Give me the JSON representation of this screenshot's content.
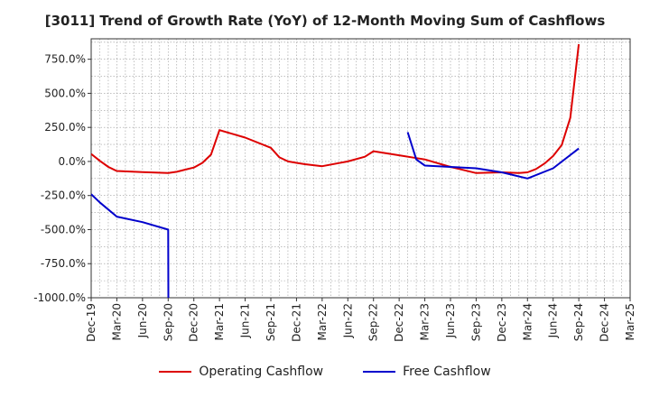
{
  "chart_data": {
    "type": "line",
    "title": "[3011]  Trend of Growth Rate (YoY) of 12-Month Moving Sum of Cashflows",
    "xlabel": "",
    "ylabel": "",
    "ylim": [
      -1000,
      900
    ],
    "y_ticks": [
      750,
      500,
      250,
      0,
      -250,
      -500,
      -750,
      -1000
    ],
    "y_tick_labels": [
      "750.0%",
      "500.0%",
      "250.0%",
      "0.0%",
      "-250.0%",
      "-500.0%",
      "-750.0%",
      "-1000.0%"
    ],
    "x_range": [
      "Dec-19",
      "Mar-25"
    ],
    "x_ticks": [
      "Dec-19",
      "Mar-20",
      "Jun-20",
      "Sep-20",
      "Dec-20",
      "Mar-21",
      "Jun-21",
      "Sep-21",
      "Dec-21",
      "Mar-22",
      "Jun-22",
      "Sep-22",
      "Dec-22",
      "Mar-23",
      "Jun-23",
      "Sep-23",
      "Dec-23",
      "Mar-24",
      "Jun-24",
      "Sep-24",
      "Dec-24",
      "Mar-25"
    ],
    "grid": true,
    "legend_position": "bottom",
    "series": [
      {
        "name": "Operating Cashflow",
        "color": "#dd0000",
        "points": [
          [
            "Dec-19",
            55
          ],
          [
            "Jan-20",
            5
          ],
          [
            "Feb-20",
            -40
          ],
          [
            "Mar-20",
            -70
          ],
          [
            "Jun-20",
            -78
          ],
          [
            "Sep-20",
            -85
          ],
          [
            "Oct-20",
            -76
          ],
          [
            "Nov-20",
            -60
          ],
          [
            "Dec-20",
            -45
          ],
          [
            "Jan-21",
            -10
          ],
          [
            "Feb-21",
            50
          ],
          [
            "Mar-21",
            230
          ],
          [
            "Jun-21",
            175
          ],
          [
            "Sep-21",
            100
          ],
          [
            "Oct-21",
            30
          ],
          [
            "Nov-21",
            0
          ],
          [
            "Dec-21",
            -10
          ],
          [
            "Jan-22",
            -20
          ],
          [
            "Mar-22",
            -35
          ],
          [
            "Jun-22",
            0
          ],
          [
            "Aug-22",
            35
          ],
          [
            "Sep-22",
            75
          ],
          [
            "Dec-22",
            45
          ],
          [
            "Feb-23",
            25
          ],
          [
            "Mar-23",
            15
          ],
          [
            "Jun-23",
            -40
          ],
          [
            "Sep-23",
            -85
          ],
          [
            "Dec-23",
            -80
          ],
          [
            "Feb-24",
            -85
          ],
          [
            "Mar-24",
            -80
          ],
          [
            "Apr-24",
            -55
          ],
          [
            "May-24",
            -15
          ],
          [
            "Jun-24",
            40
          ],
          [
            "Jul-24",
            120
          ],
          [
            "Aug-24",
            320
          ],
          [
            "Sep-24",
            860
          ]
        ]
      },
      {
        "name": "Free Cashflow",
        "color": "#0000cc",
        "points": [
          [
            "Dec-19",
            -240
          ],
          [
            "Jan-20",
            -300
          ],
          [
            "Mar-20",
            -405
          ],
          [
            "Jun-20",
            -445
          ],
          [
            "Sep-20",
            -500
          ],
          [
            "Sep-20b",
            -1000
          ],
          null,
          [
            "Jan-23",
            215
          ],
          [
            "Feb-23",
            15
          ],
          [
            "Mar-23",
            -30
          ],
          [
            "Jun-23",
            -40
          ],
          [
            "Sep-23",
            -50
          ],
          [
            "Dec-23",
            -80
          ],
          [
            "Mar-24",
            -125
          ],
          [
            "Jun-24",
            -50
          ],
          [
            "Sep-24",
            95
          ]
        ]
      }
    ]
  }
}
